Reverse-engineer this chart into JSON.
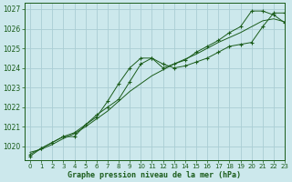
{
  "title": "Graphe pression niveau de la mer (hPa)",
  "xlim": [
    -0.5,
    23
  ],
  "ylim": [
    1019.3,
    1027.3
  ],
  "yticks": [
    1020,
    1021,
    1022,
    1023,
    1024,
    1025,
    1026,
    1027
  ],
  "xticks": [
    0,
    1,
    2,
    3,
    4,
    5,
    6,
    7,
    8,
    9,
    10,
    11,
    12,
    13,
    14,
    15,
    16,
    17,
    18,
    19,
    20,
    21,
    22,
    23
  ],
  "bg_color": "#cce8ec",
  "grid_color": "#aacdd4",
  "line_color": "#1a5c1a",
  "text_color": "#1a5c1a",
  "curve1_x": [
    0,
    1,
    2,
    3,
    4,
    5,
    6,
    7,
    8,
    9,
    10,
    11,
    12,
    13,
    14,
    15,
    16,
    17,
    18,
    19,
    20,
    21,
    22,
    23
  ],
  "curve1_y": [
    1019.6,
    1019.9,
    1020.2,
    1020.5,
    1020.5,
    1021.1,
    1021.5,
    1022.3,
    1023.2,
    1024.0,
    1024.5,
    1024.5,
    1024.2,
    1024.0,
    1024.1,
    1024.3,
    1024.5,
    1024.8,
    1025.1,
    1025.2,
    1025.3,
    1026.1,
    1026.8,
    1026.8
  ],
  "curve2_x": [
    0,
    1,
    2,
    3,
    4,
    5,
    6,
    7,
    8,
    9,
    10,
    11,
    12,
    13,
    14,
    15,
    16,
    17,
    18,
    19,
    20,
    21,
    22,
    23
  ],
  "curve2_y": [
    1019.7,
    1019.85,
    1020.1,
    1020.4,
    1020.65,
    1021.0,
    1021.4,
    1021.8,
    1022.3,
    1022.8,
    1023.2,
    1023.6,
    1023.9,
    1024.2,
    1024.45,
    1024.7,
    1025.0,
    1025.3,
    1025.55,
    1025.8,
    1026.1,
    1026.4,
    1026.5,
    1026.35
  ],
  "curve3_x": [
    0,
    1,
    2,
    3,
    4,
    5,
    6,
    7,
    8,
    9,
    10,
    11,
    12,
    13,
    14,
    15,
    16,
    17,
    18,
    19,
    20,
    21,
    22,
    23
  ],
  "curve3_y": [
    1019.5,
    1019.9,
    1020.2,
    1020.5,
    1020.7,
    1021.1,
    1021.6,
    1022.0,
    1022.4,
    1023.3,
    1024.2,
    1024.5,
    1024.0,
    1024.2,
    1024.4,
    1024.8,
    1025.1,
    1025.4,
    1025.8,
    1026.1,
    1026.9,
    1026.9,
    1026.7,
    1026.3
  ]
}
